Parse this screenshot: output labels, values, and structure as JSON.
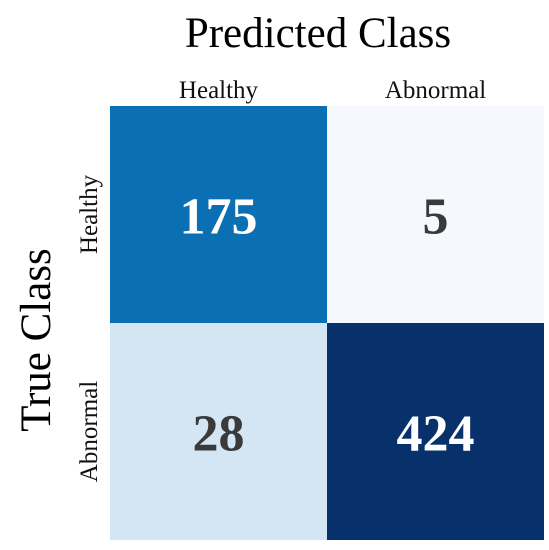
{
  "chart_data": {
    "type": "heatmap",
    "title": "Predicted Class",
    "xlabel": "",
    "ylabel": "True Class",
    "x_categories": [
      "Healthy",
      "Abnormal"
    ],
    "y_categories": [
      "Healthy",
      "Abnormal"
    ],
    "values": [
      [
        175,
        5
      ],
      [
        28,
        424
      ]
    ],
    "colors": {
      "max": "#08306b",
      "high": "#0a71b4",
      "low": "#e3eef8",
      "min": "#f5f9fe",
      "text_dark": "#3a3a3a",
      "text_light": "#ffffff"
    },
    "colorbar": false,
    "grid": false
  }
}
